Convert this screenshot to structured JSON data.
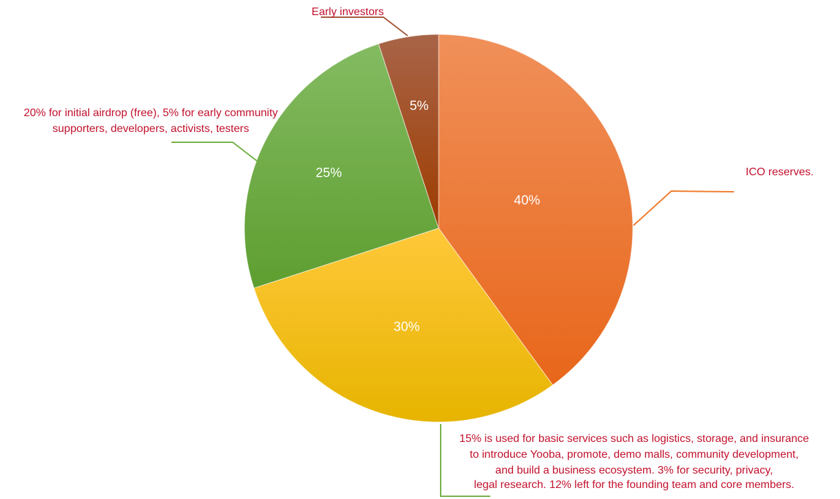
{
  "chart_data": {
    "type": "pie",
    "start": "top",
    "direction": "clockwise",
    "slices": [
      {
        "value": 40,
        "label": "40%",
        "callout": [
          "ICO reserves."
        ],
        "color_top": "#f0905a",
        "color_bottom": "#e8661a",
        "line_color": "#f07a2a"
      },
      {
        "value": 30,
        "label": "30%",
        "callout": [
          "15% is used for basic services such as logistics, storage, and insurance",
          "to introduce Yooba, promote, demo malls, community development,",
          "and build a business ecosystem. 3% for security, privacy,",
          "legal research. 12% left for the founding team and core members."
        ],
        "color_top": "#ffc83a",
        "color_bottom": "#e6b400",
        "line_color": "#72b044"
      },
      {
        "value": 25,
        "label": "25%",
        "callout": [
          "20% for initial airdrop (free), 5% for early community",
          "supporters, developers, activists, testers"
        ],
        "color_top": "#84bb62",
        "color_bottom": "#5e9e30",
        "line_color": "#72b044"
      },
      {
        "value": 5,
        "label": "5%",
        "callout": [
          "Early investors"
        ],
        "color_top": "#a86448",
        "color_bottom": "#9e3c00",
        "line_color": "#a5583a"
      }
    ]
  }
}
